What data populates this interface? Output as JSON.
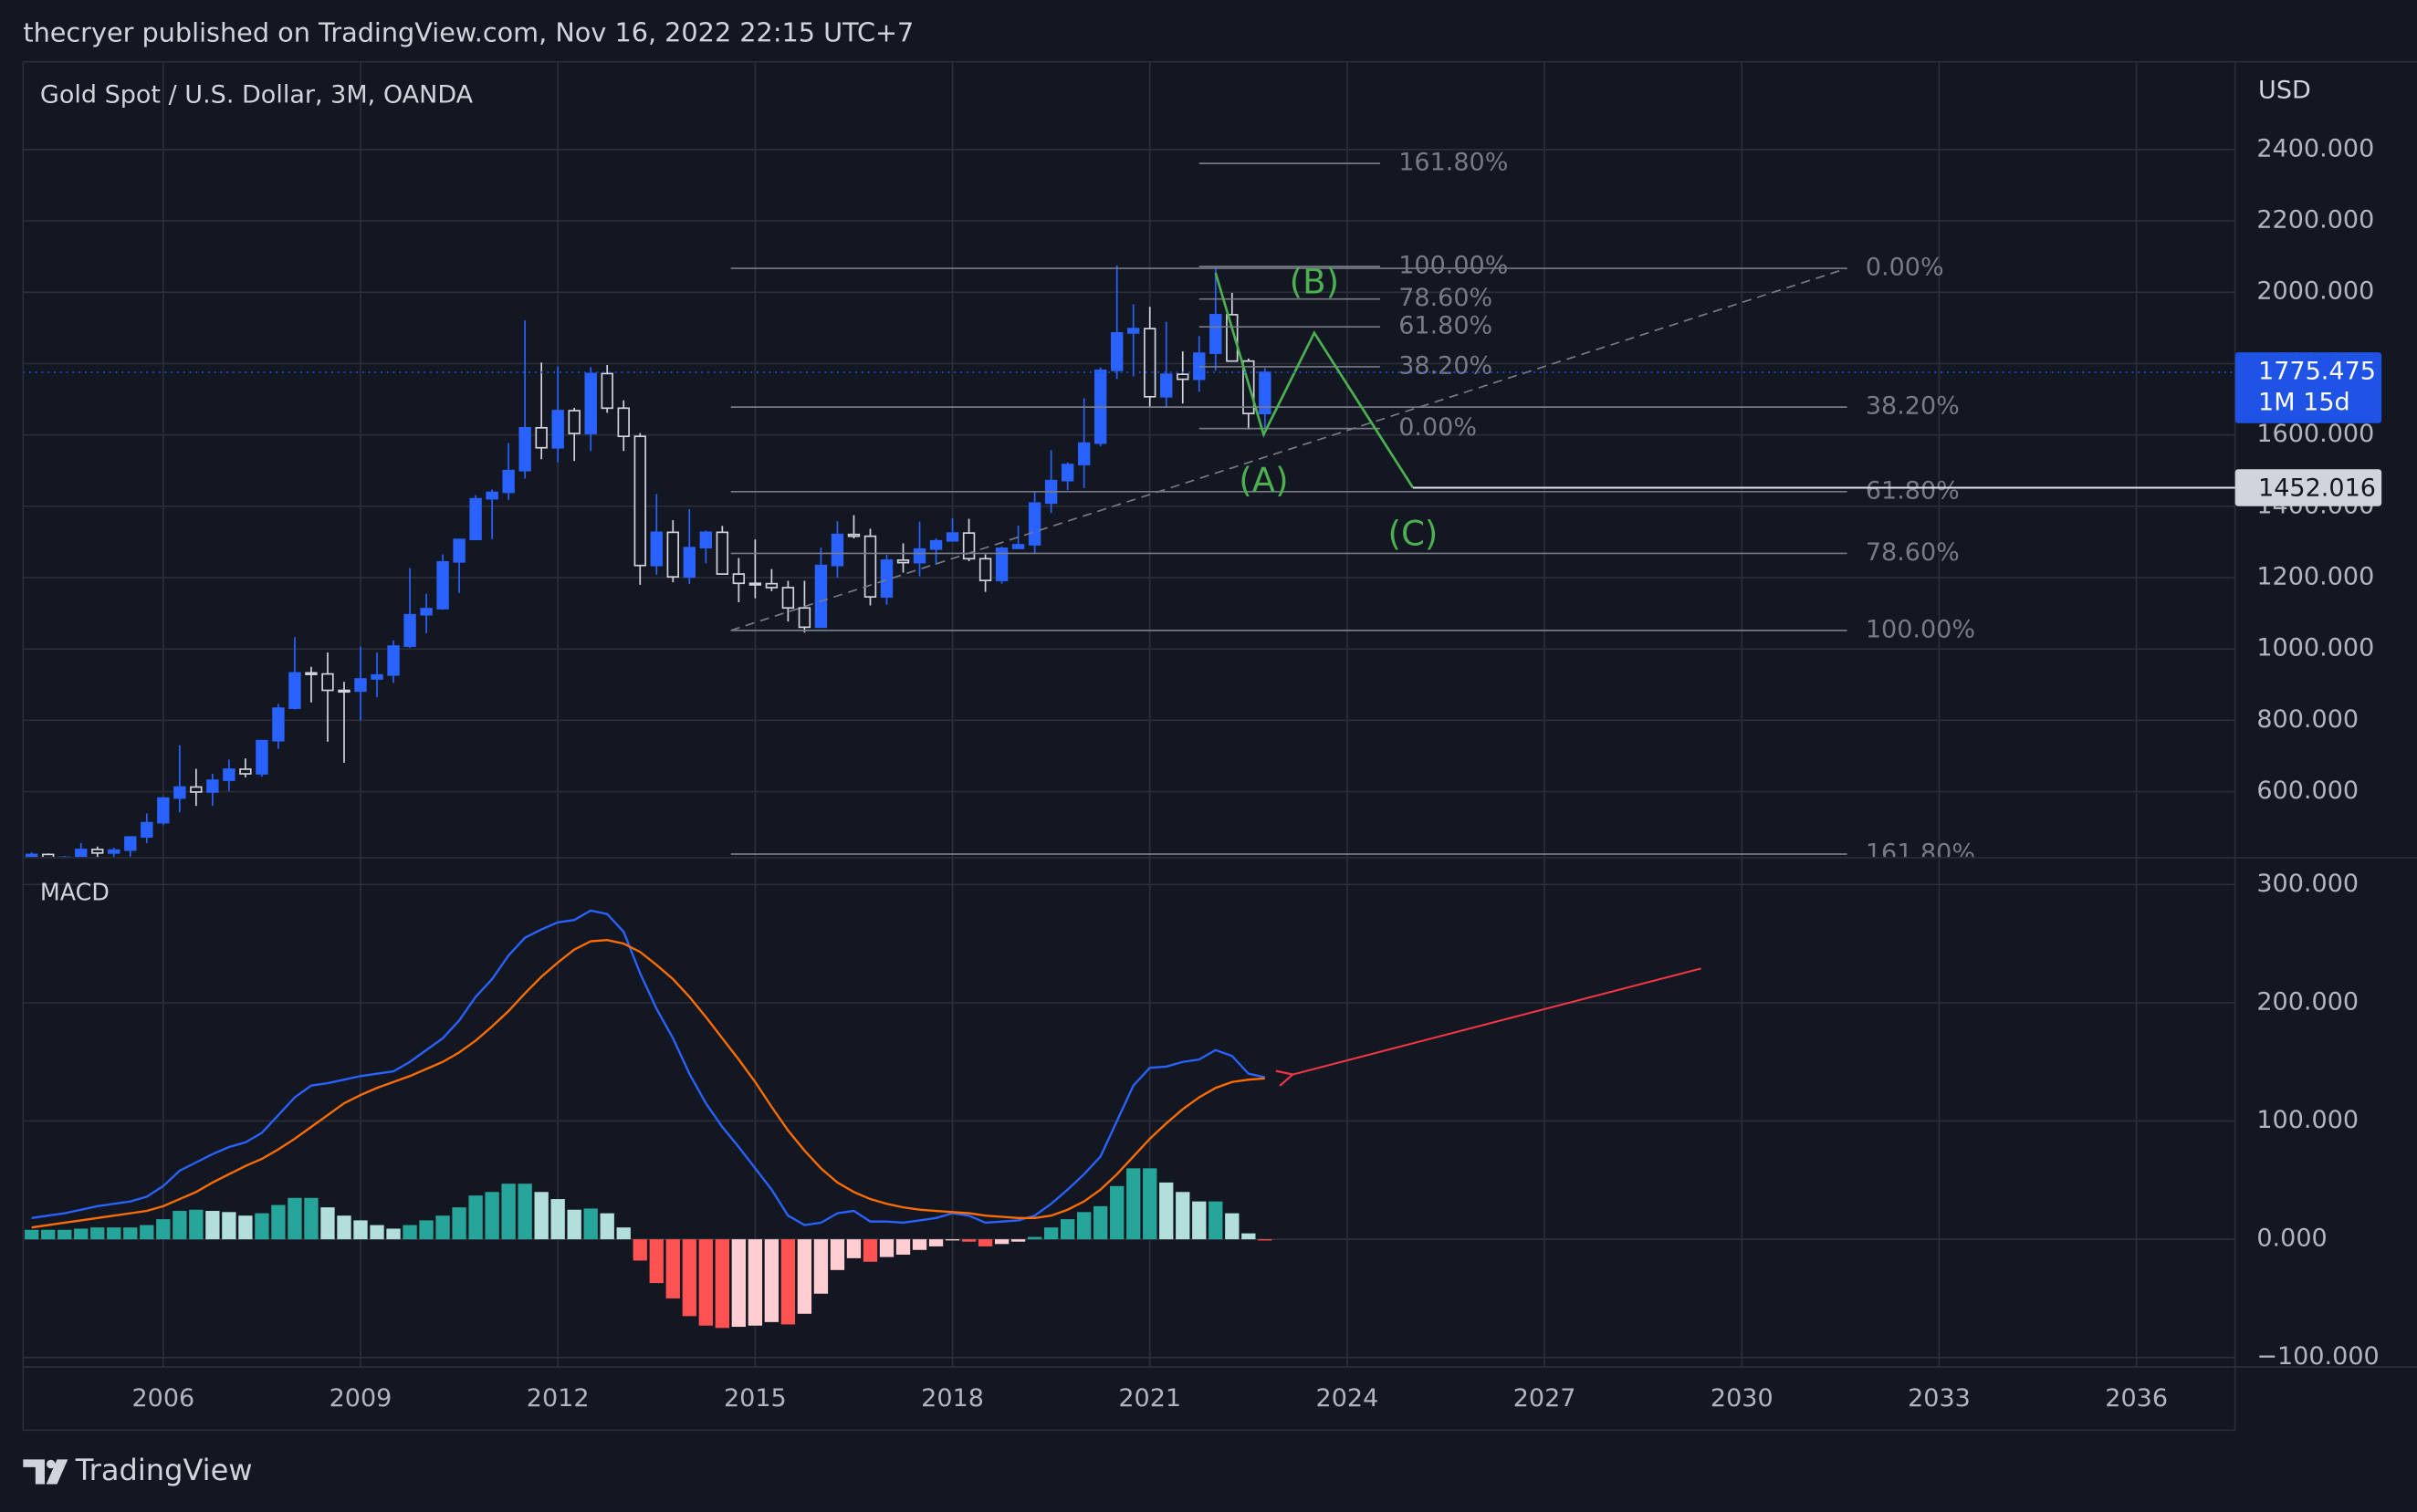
{
  "header": {
    "text": "thecryer published on TradingView.com, Nov 16, 2022 22:15 UTC+7"
  },
  "footer": {
    "brand": "TradingView"
  },
  "chart_data": [
    {
      "type": "candlestick",
      "title": "Gold Spot / U.S. Dollar, 3M, OANDA",
      "y_unit": "USD",
      "up_color": "#2962ff",
      "down_color": "#d1d4dc",
      "xlim": [
        2003.87,
        2037.5
      ],
      "ylim": [
        417,
        2646
      ],
      "yticks": [
        {
          "value": 600,
          "label": "600.000"
        },
        {
          "value": 800,
          "label": "800.000"
        },
        {
          "value": 1000,
          "label": "1000.000"
        },
        {
          "value": 1200,
          "label": "1200.000"
        },
        {
          "value": 1400,
          "label": "1400.000"
        },
        {
          "value": 1600,
          "label": "1600.000"
        },
        {
          "value": 1800,
          "label": "1800.000"
        },
        {
          "value": 2000,
          "label": "2000.000"
        },
        {
          "value": 2200,
          "label": "2200.000"
        },
        {
          "value": 2400,
          "label": "2400.000"
        }
      ],
      "x": [
        2004,
        2004.25,
        2004.5,
        2004.75,
        2005,
        2005.25,
        2005.5,
        2005.75,
        2006,
        2006.25,
        2006.5,
        2006.75,
        2007,
        2007.25,
        2007.5,
        2007.75,
        2008,
        2008.25,
        2008.5,
        2008.75,
        2009,
        2009.25,
        2009.5,
        2009.75,
        2010,
        2010.25,
        2010.5,
        2010.75,
        2011,
        2011.25,
        2011.5,
        2011.75,
        2012,
        2012.25,
        2012.5,
        2012.75,
        2013,
        2013.25,
        2013.5,
        2013.75,
        2014,
        2014.25,
        2014.5,
        2014.75,
        2015,
        2015.25,
        2015.5,
        2015.75,
        2016,
        2016.25,
        2016.5,
        2016.75,
        2017,
        2017.25,
        2017.5,
        2017.75,
        2018,
        2018.25,
        2018.5,
        2018.75,
        2019,
        2019.25,
        2019.5,
        2019.75,
        2020,
        2020.25,
        2020.5,
        2020.75,
        2021,
        2021.25,
        2021.5,
        2021.75,
        2022,
        2022.25,
        2022.5,
        2022.75
      ],
      "open": [
        416,
        424,
        395,
        416,
        438,
        428,
        436,
        473,
        513,
        582,
        613,
        599,
        632,
        663,
        650,
        743,
        834,
        933,
        930,
        884,
        882,
        916,
        927,
        1008,
        1096,
        1113,
        1244,
        1307,
        1421,
        1439,
        1500,
        1620,
        1564,
        1668,
        1604,
        1772,
        1675,
        1596,
        1234,
        1327,
        1202,
        1284,
        1327,
        1210,
        1184,
        1183,
        1172,
        1115,
        1061,
        1234,
        1321,
        1316,
        1146,
        1249,
        1242,
        1280,
        1303,
        1325,
        1253,
        1192,
        1282,
        1292,
        1409,
        1472,
        1517,
        1577,
        1781,
        1886,
        1898,
        1707,
        1770,
        1756,
        1829,
        1937,
        1807,
        1660
      ],
      "high": [
        430,
        427,
        420,
        456,
        446,
        443,
        475,
        539,
        586,
        730,
        664,
        650,
        690,
        693,
        745,
        846,
        1033,
        950,
        990,
        908,
        1007,
        990,
        1024,
        1227,
        1155,
        1265,
        1307,
        1431,
        1447,
        1577,
        1921,
        1803,
        1792,
        1676,
        1790,
        1796,
        1697,
        1605,
        1434,
        1361,
        1392,
        1332,
        1345,
        1255,
        1307,
        1224,
        1191,
        1191,
        1284,
        1358,
        1375,
        1337,
        1264,
        1296,
        1357,
        1310,
        1366,
        1365,
        1265,
        1287,
        1346,
        1439,
        1557,
        1523,
        1703,
        1789,
        2075,
        1966,
        1959,
        1917,
        1834,
        1877,
        2070,
        1998,
        1814,
        1787
      ],
      "low": [
        399,
        371,
        388,
        410,
        410,
        413,
        418,
        456,
        506,
        542,
        560,
        560,
        602,
        640,
        642,
        720,
        830,
        850,
        740,
        681,
        800,
        865,
        905,
        1003,
        1044,
        1110,
        1157,
        1305,
        1308,
        1418,
        1478,
        1532,
        1523,
        1527,
        1555,
        1662,
        1555,
        1180,
        1208,
        1187,
        1182,
        1240,
        1208,
        1131,
        1142,
        1162,
        1077,
        1046,
        1061,
        1200,
        1310,
        1122,
        1124,
        1214,
        1204,
        1236,
        1302,
        1246,
        1160,
        1183,
        1280,
        1266,
        1381,
        1445,
        1451,
        1568,
        1757,
        1764,
        1677,
        1677,
        1688,
        1721,
        1780,
        1805,
        1615,
        1616
      ],
      "close": [
        424,
        395,
        416,
        438,
        428,
        436,
        473,
        513,
        582,
        613,
        599,
        632,
        663,
        650,
        743,
        834,
        933,
        930,
        884,
        882,
        916,
        927,
        1008,
        1096,
        1113,
        1244,
        1307,
        1421,
        1439,
        1500,
        1620,
        1564,
        1668,
        1604,
        1772,
        1675,
        1596,
        1234,
        1327,
        1202,
        1284,
        1327,
        1210,
        1184,
        1183,
        1172,
        1115,
        1061,
        1234,
        1321,
        1316,
        1146,
        1249,
        1242,
        1280,
        1303,
        1325,
        1253,
        1192,
        1282,
        1292,
        1409,
        1472,
        1517,
        1577,
        1781,
        1886,
        1898,
        1707,
        1770,
        1756,
        1829,
        1937,
        1807,
        1660,
        1775.475
      ],
      "fib_color": "#787b86",
      "fibs": [
        {
          "x": [
            2021.75,
            2024.5
          ],
          "levels": [
            {
              "value": 2361,
              "label": "161.80%"
            },
            {
              "value": 2072,
              "label": "100.00%"
            },
            {
              "value": 1981,
              "label": "78.60%"
            },
            {
              "value": 1903,
              "label": "61.80%"
            },
            {
              "value": 1791,
              "label": "38.20%"
            },
            {
              "value": 1618,
              "label": "0.00%"
            }
          ]
        },
        {
          "x": [
            2014.63,
            2031.6
          ],
          "levels": [
            {
              "value": 2067,
              "label": "0.00%"
            },
            {
              "value": 1678,
              "label": "38.20%"
            },
            {
              "value": 1441,
              "label": "61.80%"
            },
            {
              "value": 1268,
              "label": "78.60%"
            },
            {
              "value": 1052,
              "label": "100.00%"
            },
            {
              "value": 425,
              "label": "161.80%"
            }
          ]
        }
      ],
      "trend": {
        "x": [
          2014.63,
          2031.6
        ],
        "y": [
          1052,
          2067
        ]
      },
      "wave": {
        "color": "#4caf50",
        "x": [
          2022.0,
          2022.73,
          2023.5,
          2025.0
        ],
        "y": [
          2054,
          1601,
          1886,
          1452
        ],
        "labels": [
          "(A)",
          "(B)",
          "(C)"
        ]
      },
      "price_labels": [
        {
          "value": 1775.475,
          "label": "1775.475",
          "sub": "1M 15d",
          "color": "#1e53e5"
        },
        {
          "value": 1452.016,
          "label": "1452.016",
          "color": "#d1d4dc"
        }
      ]
    },
    {
      "type": "line",
      "title": "MACD",
      "xlim": [
        2003.87,
        2037.5
      ],
      "ylim": [
        -108,
        322
      ],
      "xticks": [
        2006,
        2009,
        2012,
        2015,
        2018,
        2021,
        2024,
        2027,
        2030,
        2033,
        2036
      ],
      "yticks": [
        {
          "value": -100,
          "label": "−100.000"
        },
        {
          "value": 0,
          "label": "0.000"
        },
        {
          "value": 100,
          "label": "100.000"
        },
        {
          "value": 200,
          "label": "200.000"
        },
        {
          "value": 300,
          "label": "300.000"
        }
      ],
      "x": [
        2004,
        2004.25,
        2004.5,
        2004.75,
        2005,
        2005.25,
        2005.5,
        2005.75,
        2006,
        2006.25,
        2006.5,
        2006.75,
        2007,
        2007.25,
        2007.5,
        2007.75,
        2008,
        2008.25,
        2008.5,
        2008.75,
        2009,
        2009.25,
        2009.5,
        2009.75,
        2010,
        2010.25,
        2010.5,
        2010.75,
        2011,
        2011.25,
        2011.5,
        2011.75,
        2012,
        2012.25,
        2012.5,
        2012.75,
        2013,
        2013.25,
        2013.5,
        2013.75,
        2014,
        2014.25,
        2014.5,
        2014.75,
        2015,
        2015.25,
        2015.5,
        2015.75,
        2016,
        2016.25,
        2016.5,
        2016.75,
        2017,
        2017.25,
        2017.5,
        2017.75,
        2018,
        2018.25,
        2018.5,
        2018.75,
        2019,
        2019.25,
        2019.5,
        2019.75,
        2020,
        2020.25,
        2020.5,
        2020.75,
        2021,
        2021.25,
        2021.5,
        2021.75,
        2022,
        2022.25,
        2022.5,
        2022.75
      ],
      "series": [
        {
          "color": "#2962ff",
          "values": [
            18,
            20,
            22,
            25,
            28,
            30,
            32,
            36,
            45,
            58,
            65,
            72,
            78,
            82,
            90,
            105,
            120,
            130,
            132,
            135,
            138,
            140,
            142,
            150,
            160,
            170,
            185,
            205,
            220,
            240,
            255,
            262,
            268,
            270,
            278,
            275,
            260,
            225,
            195,
            170,
            140,
            115,
            95,
            78,
            60,
            42,
            20,
            12,
            14,
            22,
            24,
            15,
            15,
            14,
            16,
            18,
            22,
            20,
            14,
            15,
            16,
            20,
            30,
            42,
            55,
            70,
            100,
            130,
            145,
            146,
            150,
            152,
            160,
            155,
            140,
            137
          ]
        },
        {
          "color": "#ff6d00",
          "values": [
            10,
            12,
            14,
            16,
            18,
            20,
            22,
            24,
            28,
            34,
            40,
            48,
            55,
            62,
            68,
            76,
            85,
            95,
            105,
            115,
            122,
            128,
            133,
            138,
            144,
            150,
            158,
            168,
            180,
            193,
            208,
            222,
            234,
            245,
            252,
            253,
            250,
            243,
            232,
            220,
            205,
            188,
            170,
            152,
            133,
            112,
            92,
            75,
            60,
            48,
            40,
            34,
            30,
            27,
            25,
            24,
            23,
            22,
            20,
            19,
            18,
            18,
            20,
            25,
            32,
            42,
            55,
            70,
            85,
            98,
            110,
            120,
            128,
            133,
            135,
            136
          ]
        }
      ],
      "histogram": {
        "colors": [
          "#26a69a",
          "#b2dfdb",
          "#ff5252",
          "#ffcdd2"
        ],
        "values": [
          8,
          8,
          8,
          9,
          10,
          10,
          10,
          12,
          17,
          24,
          25,
          24,
          23,
          20,
          22,
          29,
          35,
          35,
          27,
          20,
          16,
          12,
          9,
          12,
          16,
          20,
          27,
          37,
          40,
          47,
          47,
          40,
          34,
          25,
          26,
          22,
          10,
          -18,
          -37,
          -50,
          -65,
          -73,
          -75,
          -74,
          -73,
          -70,
          -72,
          -63,
          -46,
          -26,
          -16,
          -19,
          -15,
          -13,
          -9,
          -6,
          -1,
          -2,
          -6,
          -4,
          -2,
          2,
          10,
          17,
          23,
          28,
          45,
          60,
          60,
          48,
          40,
          32,
          32,
          22,
          5,
          -1
        ]
      },
      "arrow": {
        "color": "#f23645",
        "x": [
          2029.38,
          2023.15
        ],
        "y": [
          229,
          139
        ]
      }
    }
  ]
}
